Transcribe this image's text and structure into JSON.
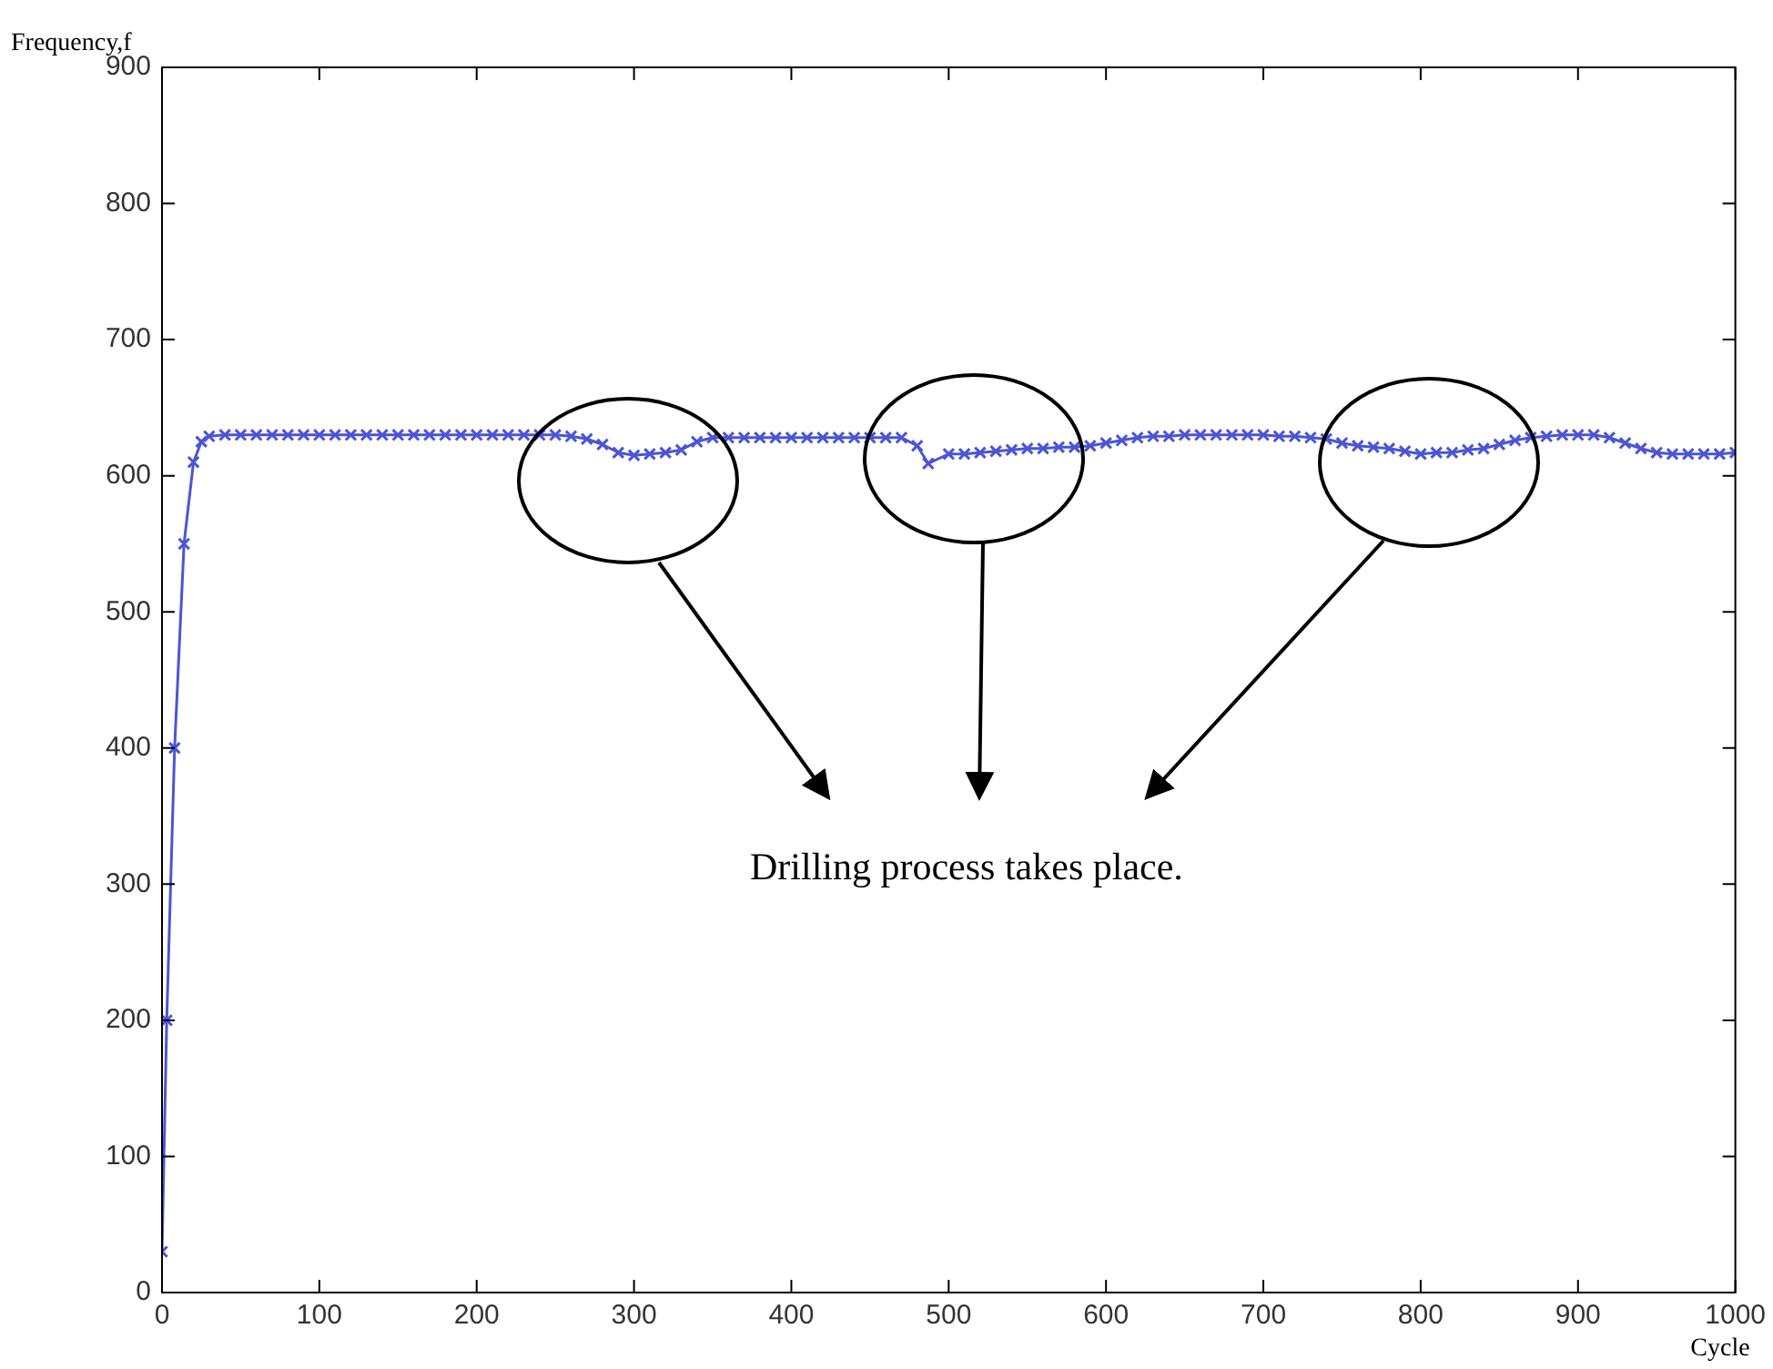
{
  "chart_data": {
    "type": "line",
    "xlabel": "Cycle",
    "ylabel": "Frequency,f",
    "annotations": [
      "Drilling process takes place."
    ],
    "x": [
      0,
      3,
      8,
      14,
      20,
      25,
      30,
      40,
      50,
      60,
      70,
      80,
      90,
      100,
      110,
      120,
      130,
      140,
      150,
      160,
      170,
      180,
      190,
      200,
      210,
      220,
      230,
      240,
      250,
      260,
      270,
      280,
      290,
      300,
      310,
      320,
      330,
      340,
      350,
      360,
      370,
      380,
      390,
      400,
      410,
      420,
      430,
      440,
      450,
      460,
      470,
      480,
      487,
      500,
      510,
      520,
      530,
      540,
      550,
      560,
      570,
      580,
      590,
      600,
      610,
      620,
      630,
      640,
      650,
      660,
      670,
      680,
      690,
      700,
      710,
      720,
      730,
      740,
      750,
      760,
      770,
      780,
      790,
      800,
      810,
      820,
      830,
      840,
      850,
      860,
      870,
      880,
      890,
      900,
      910,
      920,
      930,
      940,
      950,
      960,
      970,
      980,
      990,
      1000
    ],
    "series": [
      {
        "color": "#4a55d6",
        "values": [
          30,
          200,
          400,
          550,
          610,
          625,
          629,
          630,
          630,
          630,
          630,
          630,
          630,
          630,
          630,
          630,
          630,
          630,
          630,
          630,
          630,
          630,
          630,
          630,
          630,
          630,
          630,
          630,
          630,
          629,
          627,
          623,
          617,
          615,
          616,
          617,
          619,
          625,
          628,
          628,
          628,
          628,
          628,
          628,
          628,
          628,
          628,
          628,
          628,
          628,
          628,
          622,
          609,
          616,
          616,
          617,
          618,
          619,
          620,
          620,
          621,
          621,
          622,
          624,
          626,
          628,
          629,
          629,
          630,
          630,
          630,
          630,
          630,
          630,
          629,
          629,
          628,
          627,
          624,
          622,
          621,
          620,
          618,
          616,
          617,
          617,
          619,
          620,
          623,
          626,
          628,
          629,
          630,
          630,
          630,
          628,
          624,
          620,
          617,
          616,
          616,
          616,
          616,
          617
        ]
      }
    ],
    "xlim": [
      0,
      1000
    ],
    "xticks": [
      0,
      100,
      200,
      300,
      400,
      500,
      600,
      700,
      800,
      900,
      1000
    ],
    "ylim": [
      0,
      900
    ],
    "yticks": [
      0,
      100,
      200,
      300,
      400,
      500,
      600,
      700,
      800,
      900
    ],
    "grid": false,
    "legend": false,
    "marker": "cross",
    "line_style": "solid"
  }
}
